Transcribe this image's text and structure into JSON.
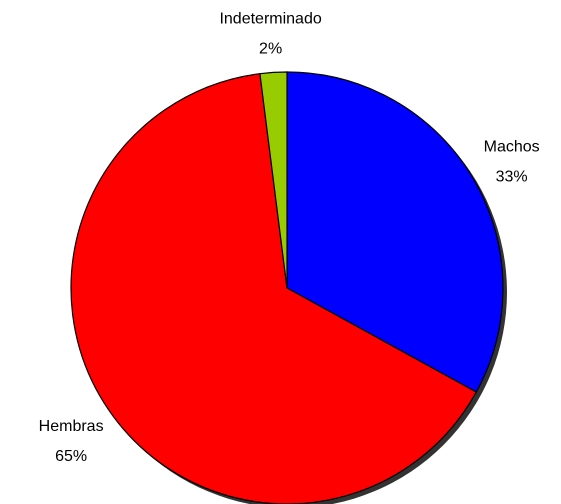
{
  "chart_data": {
    "type": "pie",
    "categories": [
      "Machos",
      "Hembras",
      "Indeterminado"
    ],
    "values": [
      33,
      65,
      2
    ],
    "value_labels": [
      "33%",
      "65%",
      "2%"
    ],
    "colors": [
      "#0000ff",
      "#ff0000",
      "#99cc00"
    ]
  }
}
